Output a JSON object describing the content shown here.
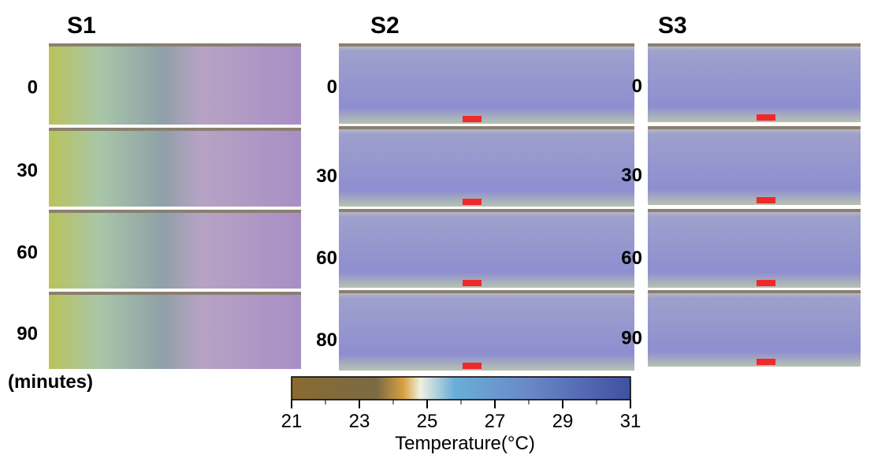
{
  "panels": [
    {
      "title": "S1",
      "rows": [
        "0",
        "30",
        "60",
        "90"
      ]
    },
    {
      "title": "S2",
      "rows": [
        "0",
        "30",
        "60",
        "80"
      ]
    },
    {
      "title": "S3",
      "rows": [
        "0",
        "30",
        "60",
        "90"
      ]
    }
  ],
  "unit_label": "(minutes)",
  "colorbar": {
    "ticks": [
      21,
      23,
      25,
      27,
      29,
      31
    ],
    "label": "Temperature(°C)"
  }
}
